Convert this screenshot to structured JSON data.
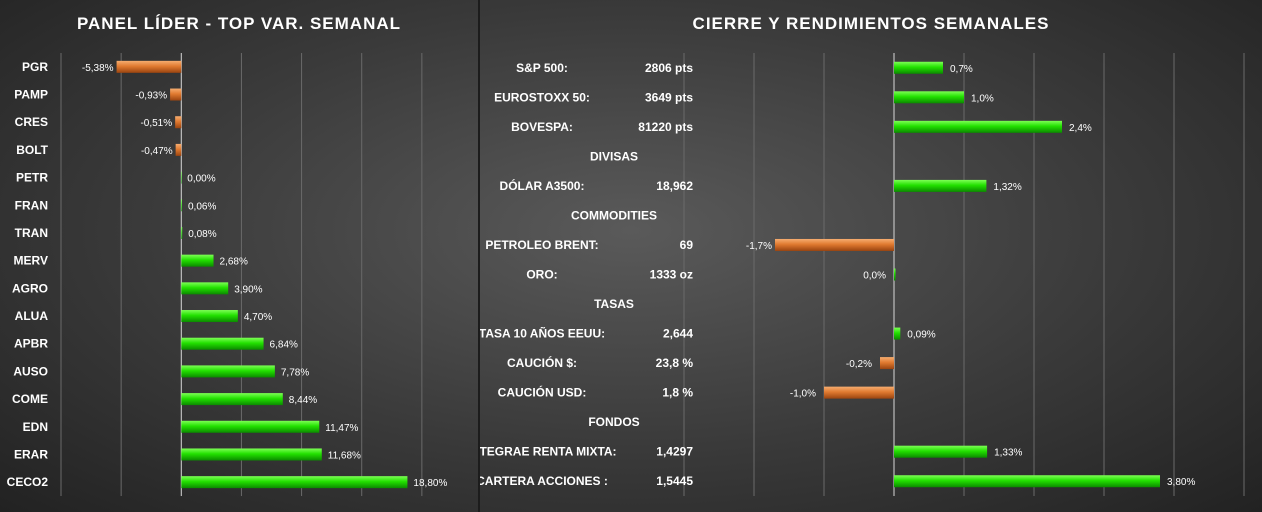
{
  "left": {
    "title": "PANEL LÍDER - TOP VAR. SEMANAL",
    "chart_data": {
      "type": "bar",
      "orientation": "horizontal",
      "categories": [
        "PGR",
        "PAMP",
        "CRES",
        "BOLT",
        "PETR",
        "FRAN",
        "TRAN",
        "MERV",
        "AGRO",
        "ALUA",
        "APBR",
        "AUSO",
        "COME",
        "EDN",
        "ERAR",
        "CECO2"
      ],
      "values": [
        -5.38,
        -0.93,
        -0.51,
        -0.47,
        0.0,
        0.06,
        0.08,
        2.68,
        3.9,
        4.7,
        6.84,
        7.78,
        8.44,
        11.47,
        11.68,
        18.8
      ],
      "labels": [
        "-5,38%",
        "-0,93%",
        "-0,51%",
        "-0,47%",
        "0,00%",
        "0,06%",
        "0,08%",
        "2,68%",
        "3,90%",
        "4,70%",
        "6,84%",
        "7,78%",
        "8,44%",
        "11,47%",
        "11,68%",
        "18,80%"
      ],
      "xlim": [
        -10,
        25
      ],
      "grid": true,
      "positive_color": "#22dd00",
      "negative_color": "#e07a30"
    }
  },
  "right": {
    "title": "CIERRE Y RENDIMIENTOS  SEMANALES",
    "chart_data": {
      "type": "bar",
      "orientation": "horizontal",
      "rows": [
        {
          "kind": "item",
          "name": "S&P 500:",
          "close": "2806 pts",
          "value": 0.7,
          "label": "0,7%"
        },
        {
          "kind": "item",
          "name": "EUROSTOXX 50:",
          "close": "3649 pts",
          "value": 1.0,
          "label": "1,0%"
        },
        {
          "kind": "item",
          "name": "BOVESPA:",
          "close": "81220 pts",
          "value": 2.4,
          "label": "2,4%"
        },
        {
          "kind": "header",
          "name": "DIVISAS"
        },
        {
          "kind": "item",
          "name": "DÓLAR A3500:",
          "close": "18,962",
          "value": 1.32,
          "label": "1,32%"
        },
        {
          "kind": "header",
          "name": "COMMODITIES"
        },
        {
          "kind": "item",
          "name": "PETROLEO BRENT:",
          "close": "69",
          "value": -1.7,
          "label": "-1,7%"
        },
        {
          "kind": "item",
          "name": "ORO:",
          "close": "1333 oz",
          "value": 0.0,
          "label": "0,0%"
        },
        {
          "kind": "header",
          "name": "TASAS"
        },
        {
          "kind": "item",
          "name": "TASA 10 AÑOS EEUU:",
          "close": "2,644",
          "value": 0.09,
          "label": "0,09%"
        },
        {
          "kind": "item",
          "name": "CAUCIÓN $:",
          "close": "23,8 %",
          "value": -0.2,
          "label": "-0,2%"
        },
        {
          "kind": "item",
          "name": "CAUCIÓN USD:",
          "close": "1,8 %",
          "value": -1.0,
          "label": "-1,0%"
        },
        {
          "kind": "header",
          "name": "FONDOS"
        },
        {
          "kind": "item",
          "name": "INTEGRAE RENTA MIXTA:",
          "close": "1,4297",
          "value": 1.33,
          "label": "1,33%"
        },
        {
          "kind": "item",
          "name": "CARTERA ACCIONES :",
          "close": "1,5445",
          "value": 3.8,
          "label": "3,80%"
        }
      ],
      "xlim": [
        -3,
        5
      ],
      "grid": true,
      "positive_color": "#22dd00",
      "negative_color": "#e07a30"
    }
  }
}
